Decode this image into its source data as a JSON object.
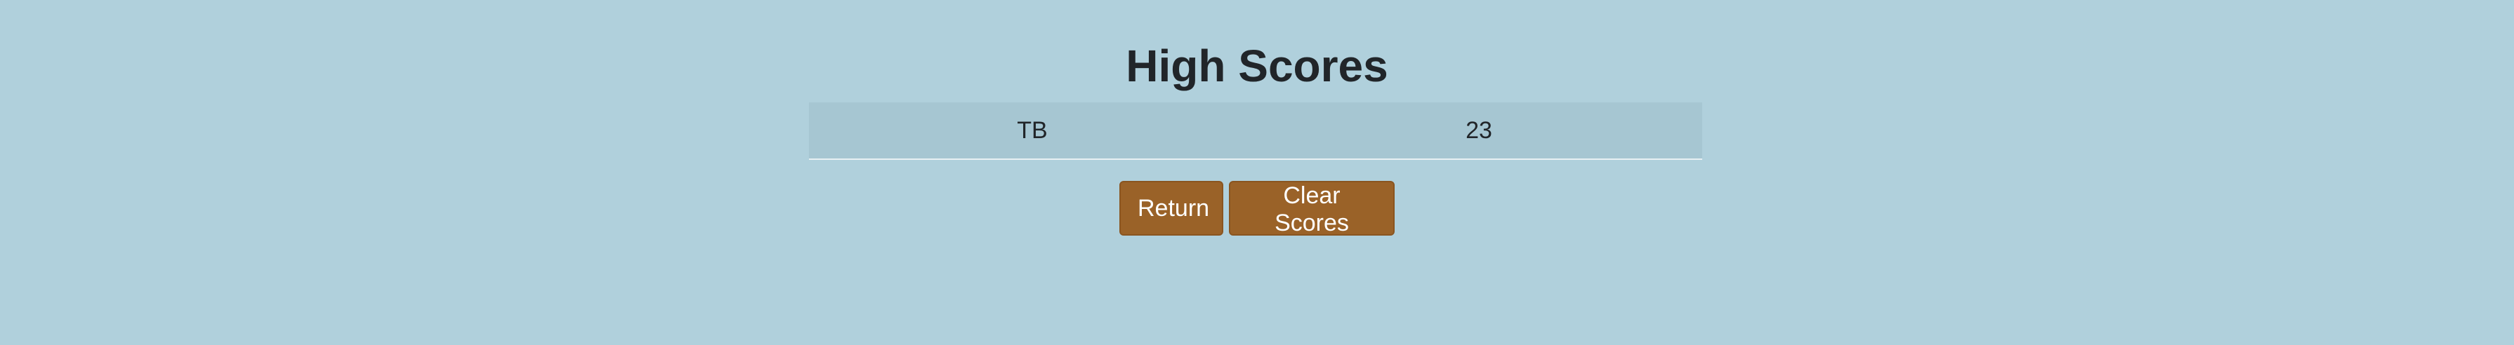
{
  "page": {
    "title": "High Scores"
  },
  "scores": [
    {
      "initials": "TB",
      "score": "23"
    }
  ],
  "actions": {
    "return_label": "Return",
    "clear_label": "Clear Scores"
  },
  "colors": {
    "background": "#b0d0dc",
    "table_row": "#a6c6d2",
    "button": "#9a6228",
    "button_text": "#ffffff",
    "title_text": "#212529"
  }
}
